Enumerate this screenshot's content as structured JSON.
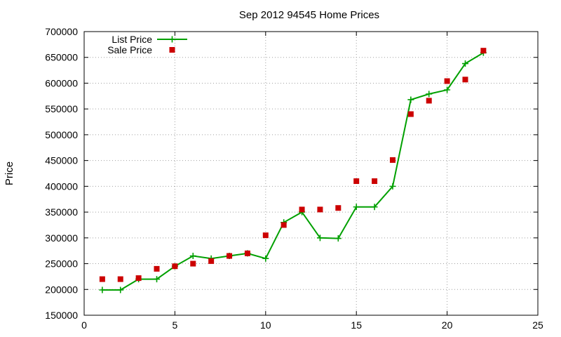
{
  "chart_data": {
    "type": "line",
    "title": "Sep 2012 94545 Home Prices",
    "xlabel": "",
    "ylabel": "Price",
    "xlim": [
      0,
      25
    ],
    "ylim": [
      150000,
      700000
    ],
    "x_ticks": [
      0,
      5,
      10,
      15,
      20,
      25
    ],
    "y_ticks": [
      150000,
      200000,
      250000,
      300000,
      350000,
      400000,
      450000,
      500000,
      550000,
      600000,
      650000,
      700000
    ],
    "grid": true,
    "legend_position": "top-left",
    "series": [
      {
        "name": "List Price",
        "style": "line-with-plus-markers",
        "color": "#00a000",
        "x": [
          1,
          2,
          3,
          4,
          5,
          6,
          7,
          8,
          9,
          10,
          11,
          12,
          13,
          14,
          15,
          16,
          17,
          18,
          19,
          20,
          21,
          22
        ],
        "values": [
          199000,
          199000,
          220000,
          220000,
          245000,
          265000,
          260000,
          265000,
          270000,
          260000,
          330000,
          350000,
          300000,
          299000,
          360000,
          360000,
          400000,
          568000,
          579000,
          587000,
          638000,
          659000
        ]
      },
      {
        "name": "Sale Price",
        "style": "square-markers",
        "color": "#cc0000",
        "x": [
          1,
          2,
          3,
          4,
          5,
          6,
          7,
          8,
          9,
          10,
          11,
          12,
          13,
          14,
          15,
          16,
          17,
          18,
          19,
          20,
          21,
          22
        ],
        "values": [
          220000,
          220000,
          222000,
          240000,
          245000,
          250000,
          255000,
          265000,
          270000,
          305000,
          325000,
          355000,
          355000,
          358000,
          410000,
          410000,
          451000,
          540000,
          566000,
          604000,
          607000,
          663000
        ]
      }
    ]
  }
}
